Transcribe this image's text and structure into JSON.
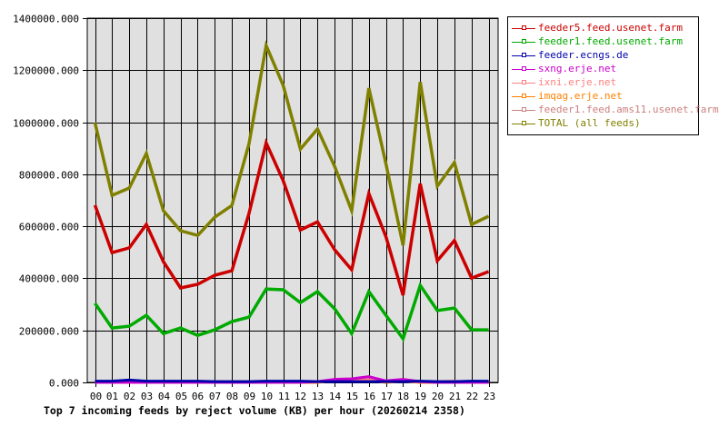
{
  "chart_data": {
    "type": "line",
    "title": "Top 7 incoming feeds by reject volume (KB) per hour (20260214 2358)",
    "xlabel": "",
    "ylabel": "",
    "ylim": [
      0,
      1400000
    ],
    "grid": true,
    "legend_position": "right",
    "categories": [
      "00",
      "01",
      "02",
      "03",
      "04",
      "05",
      "06",
      "07",
      "08",
      "09",
      "10",
      "11",
      "12",
      "13",
      "14",
      "15",
      "16",
      "17",
      "18",
      "19",
      "20",
      "21",
      "22",
      "23"
    ],
    "y_ticks": [
      "0.000",
      "200000.000",
      "400000.000",
      "600000.000",
      "800000.000",
      "1000000.000",
      "1200000.000",
      "1400000.000"
    ],
    "series": [
      {
        "name": "feeder5.feed.usenet.farm",
        "color": "#cc0000",
        "values": [
          681000,
          499000,
          517000,
          607000,
          464000,
          363000,
          377000,
          412000,
          429000,
          650000,
          921000,
          775000,
          586000,
          617000,
          510000,
          433000,
          726000,
          560000,
          335000,
          764000,
          468000,
          545000,
          401000,
          426000
        ]
      },
      {
        "name": "feeder1.feed.usenet.farm",
        "color": "#00aa00",
        "values": [
          304000,
          209000,
          216000,
          258000,
          188000,
          209000,
          181000,
          202000,
          234000,
          251000,
          359000,
          356000,
          307000,
          349000,
          283000,
          188000,
          349000,
          258000,
          168000,
          373000,
          276000,
          286000,
          202000,
          202000
        ]
      },
      {
        "name": "feeder.ecngs.de",
        "color": "#0000aa",
        "values": [
          5000,
          5000,
          9000,
          5000,
          5000,
          5000,
          5000,
          3000,
          3000,
          3000,
          5000,
          5000,
          5000,
          3000,
          3000,
          3000,
          3000,
          3000,
          3000,
          5000,
          3000,
          3000,
          5000,
          5000
        ]
      },
      {
        "name": "sxng.erje.net",
        "color": "#cc00cc",
        "values": [
          0,
          0,
          0,
          0,
          0,
          0,
          0,
          0,
          0,
          0,
          0,
          0,
          0,
          3000,
          12000,
          14000,
          22000,
          6000,
          12000,
          3000,
          0,
          0,
          0,
          0
        ]
      },
      {
        "name": "ixni.erje.net",
        "color": "#ff8080",
        "values": [
          0,
          0,
          0,
          0,
          0,
          0,
          0,
          0,
          0,
          0,
          0,
          0,
          0,
          2000,
          6000,
          8000,
          10000,
          3000,
          7000,
          1000,
          3000,
          5000,
          0,
          0
        ]
      },
      {
        "name": "imqag.erje.net",
        "color": "#ff8000",
        "values": [
          5000,
          0,
          0,
          0,
          0,
          0,
          0,
          0,
          0,
          0,
          0,
          0,
          0,
          0,
          7000,
          7000,
          8000,
          0,
          5000,
          0,
          0,
          0,
          0,
          0
        ]
      },
      {
        "name": "feeder1.feed.ams11.usenet.farm",
        "color": "#cc8080",
        "values": [
          2000,
          2000,
          2000,
          2000,
          2000,
          2000,
          2000,
          3000,
          3000,
          3000,
          2000,
          2000,
          2000,
          3000,
          4000,
          4000,
          4000,
          3000,
          3000,
          2000,
          3000,
          3000,
          2000,
          2000
        ]
      },
      {
        "name": "TOTAL (all feeds)",
        "color": "#808000",
        "values": [
          998000,
          719000,
          747000,
          880000,
          660000,
          583000,
          565000,
          635000,
          680000,
          918000,
          1295000,
          1141000,
          897000,
          974000,
          831000,
          660000,
          1131000,
          840000,
          527000,
          1155000,
          754000,
          845000,
          607000,
          639000
        ]
      }
    ]
  }
}
